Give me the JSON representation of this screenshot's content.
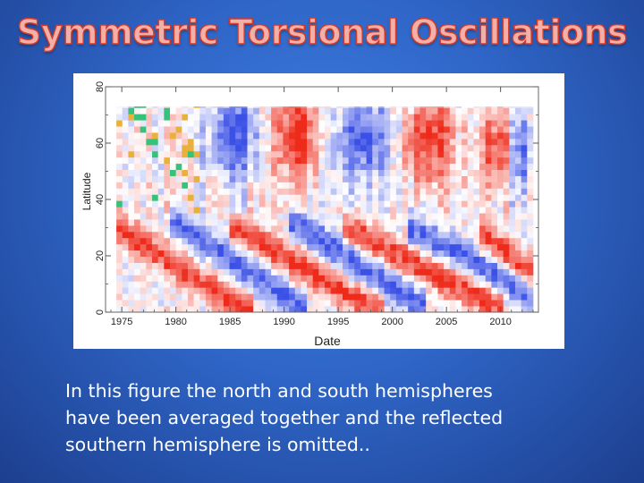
{
  "slide": {
    "title": "Symmetric Torsional Oscillations",
    "caption_lines": [
      "In this figure the north and south hemispheres",
      "have been averaged together and the reflected",
      "southern hemisphere is omitted.."
    ]
  },
  "chart_data": {
    "type": "heatmap",
    "title": "",
    "xlabel": "Date",
    "ylabel": "Latitude",
    "xlim": [
      1973.5,
      2013.5
    ],
    "ylim": [
      0,
      80
    ],
    "x_ticks": [
      "1975",
      "1980",
      "1985",
      "1990",
      "1995",
      "2000",
      "2005",
      "2010"
    ],
    "y_ticks": [
      "0",
      "20",
      "40",
      "60",
      "80"
    ],
    "colormap": [
      "#3a50e6",
      "#ffffff",
      "#ee2a1a"
    ],
    "data_extent": {
      "x": [
        1974.5,
        2012.5
      ],
      "y": [
        0,
        73
      ]
    },
    "features": {
      "equatorward_red_bands": [
        {
          "x_start": 1974,
          "x_end": 1986,
          "lat_start": 30,
          "lat_end": 0
        },
        {
          "x_start": 1985.5,
          "x_end": 1998,
          "lat_start": 28,
          "lat_end": 0
        },
        {
          "x_start": 1996,
          "x_end": 2009,
          "lat_start": 28,
          "lat_end": 2
        },
        {
          "x_start": 2008.5,
          "x_end": 2013,
          "lat_start": 26,
          "lat_end": 10
        }
      ],
      "equatorward_blue_bands": [
        {
          "x_start": 1980,
          "x_end": 1991,
          "lat_start": 30,
          "lat_end": 2
        },
        {
          "x_start": 1991,
          "x_end": 2002,
          "lat_start": 30,
          "lat_end": 2
        },
        {
          "x_start": 2002,
          "x_end": 2012,
          "lat_start": 28,
          "lat_end": 6
        }
      ],
      "polar_red_patches": [
        {
          "x_center": 1991,
          "lat_center": 62,
          "x_half": 2.2,
          "lat_half": 16
        },
        {
          "x_center": 2003,
          "lat_center": 60,
          "x_half": 2.5,
          "lat_half": 14
        },
        {
          "x_center": 2009.5,
          "lat_center": 58,
          "x_half": 1.5,
          "lat_half": 14
        }
      ],
      "polar_blue_patches": [
        {
          "x_center": 1985,
          "lat_center": 62,
          "x_half": 2.4,
          "lat_half": 15
        },
        {
          "x_center": 1997,
          "lat_center": 60,
          "x_half": 2.6,
          "lat_half": 14
        },
        {
          "x_center": 2011.5,
          "lat_center": 56,
          "x_half": 1.2,
          "lat_half": 16
        }
      ]
    }
  }
}
